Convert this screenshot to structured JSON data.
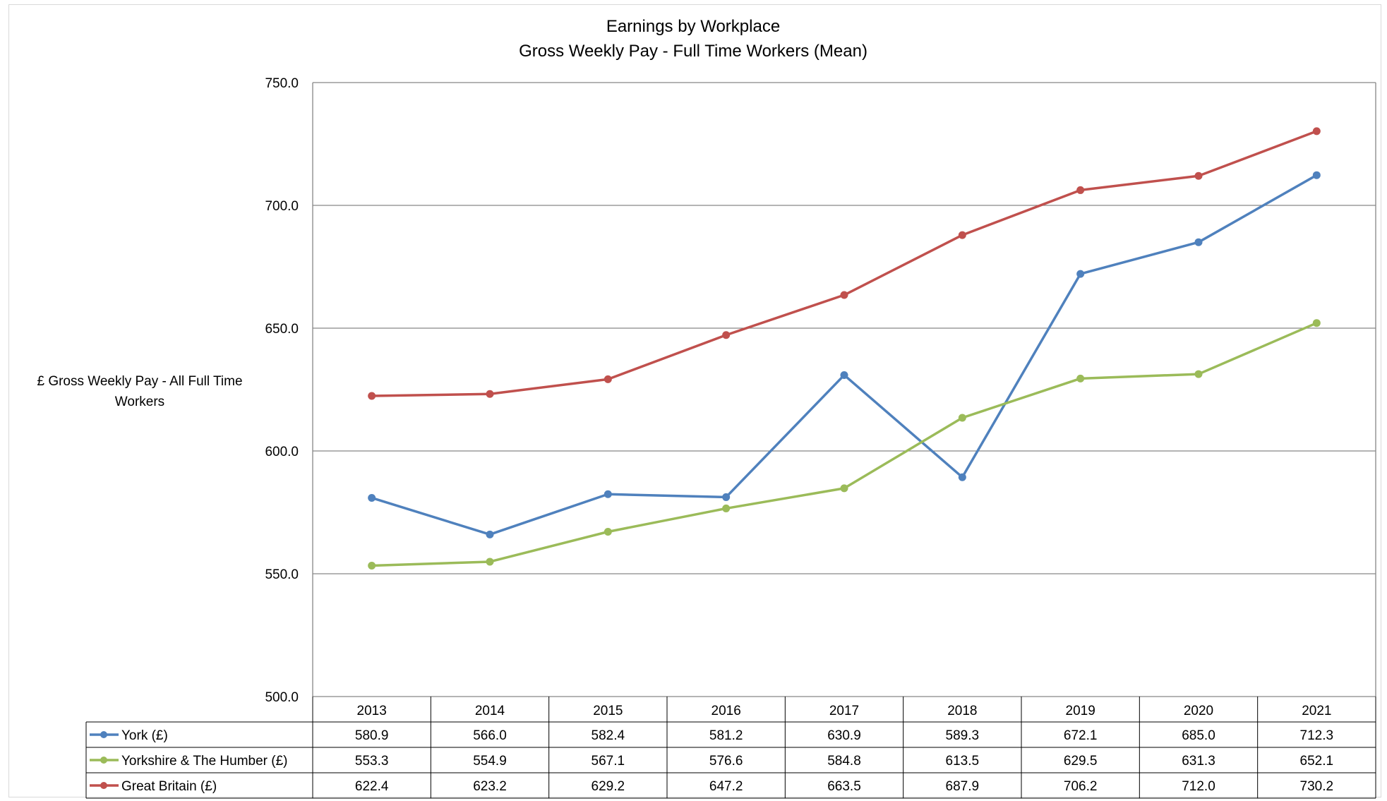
{
  "chart_data": {
    "type": "line",
    "title": "Earnings by Workplace",
    "subtitle": "Gross Weekly Pay - Full Time Workers (Mean)",
    "ylabel_line1": "£ Gross Weekly Pay - All Full Time",
    "ylabel_line2": "Workers",
    "xlabel": "",
    "ylim": [
      500,
      750
    ],
    "ytick_values": [
      500,
      550,
      600,
      650,
      700,
      750
    ],
    "yticks": [
      "500.0",
      "550.0",
      "600.0",
      "650.0",
      "700.0",
      "750.0"
    ],
    "grid": true,
    "legend": "data-table",
    "categories": [
      "2013",
      "2014",
      "2015",
      "2016",
      "2017",
      "2018",
      "2019",
      "2020",
      "2021"
    ],
    "series": [
      {
        "name": "York (£)",
        "color": "#4f81bd",
        "values": [
          580.9,
          566.0,
          582.4,
          581.2,
          630.9,
          589.3,
          672.1,
          685.0,
          712.3
        ],
        "labels": [
          "580.9",
          "566.0",
          "582.4",
          "581.2",
          "630.9",
          "589.3",
          "672.1",
          "685.0",
          "712.3"
        ]
      },
      {
        "name": "Yorkshire & The Humber (£)",
        "color": "#9bbb59",
        "values": [
          553.3,
          554.9,
          567.1,
          576.6,
          584.8,
          613.5,
          629.5,
          631.3,
          652.1
        ],
        "labels": [
          "553.3",
          "554.9",
          "567.1",
          "576.6",
          "584.8",
          "613.5",
          "629.5",
          "631.3",
          "652.1"
        ]
      },
      {
        "name": "Great Britain (£)",
        "color": "#c0504d",
        "values": [
          622.4,
          623.2,
          629.2,
          647.2,
          663.5,
          687.9,
          706.2,
          712.0,
          730.2
        ],
        "labels": [
          "622.4",
          "623.2",
          "629.2",
          "647.2",
          "663.5",
          "687.9",
          "706.2",
          "712.0",
          "730.2"
        ]
      }
    ]
  }
}
